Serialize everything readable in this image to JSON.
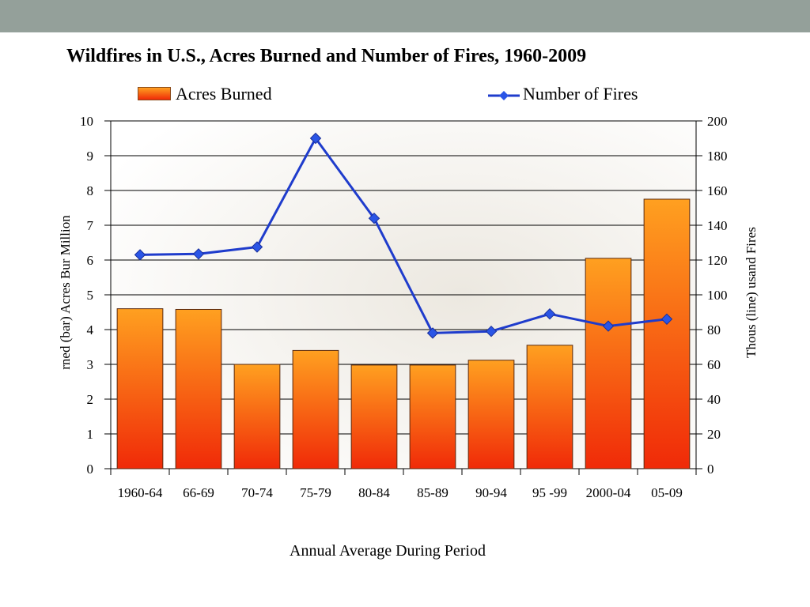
{
  "chart_data": {
    "type": "bar+line",
    "title": "Wildfires in U.S., Acres Burned and Number of Fires, 1960-2009",
    "xlabel": "Annual Average During Period",
    "ylabel_left": "rned (bar) Acres Bur Million",
    "ylabel_right": "Thous (line) usand Fires",
    "categories": [
      "1960-64",
      "66-69",
      "70-74",
      "75-79",
      "80-84",
      "85-89",
      "90-94",
      "95 -99",
      "2000-04",
      "05-09"
    ],
    "series": [
      {
        "name": "Acres Burned",
        "type": "bar",
        "axis": "left",
        "values": [
          4.6,
          4.58,
          3.0,
          3.4,
          2.98,
          2.98,
          3.12,
          3.55,
          6.05,
          7.75
        ]
      },
      {
        "name": "Number of Fires",
        "type": "line",
        "axis": "right",
        "values": [
          123,
          123.5,
          127.5,
          190,
          144,
          78,
          79,
          89,
          82,
          86
        ]
      }
    ],
    "ylim_left": [
      0,
      10
    ],
    "ylim_right": [
      0,
      200
    ],
    "yticks_left": [
      "0",
      "1",
      "2",
      "3",
      "4",
      "5",
      "6",
      "7",
      "8",
      "9",
      "10"
    ],
    "yticks_right": [
      "0",
      "20",
      "40",
      "60",
      "80",
      "100",
      "120",
      "140",
      "160",
      "180",
      "200"
    ],
    "grid": true,
    "legend_position": "top",
    "colors": {
      "bar_top": "#ffa020",
      "bar_bottom": "#f02a08",
      "line": "#1f3ccc",
      "marker": "#2a55e6"
    }
  }
}
